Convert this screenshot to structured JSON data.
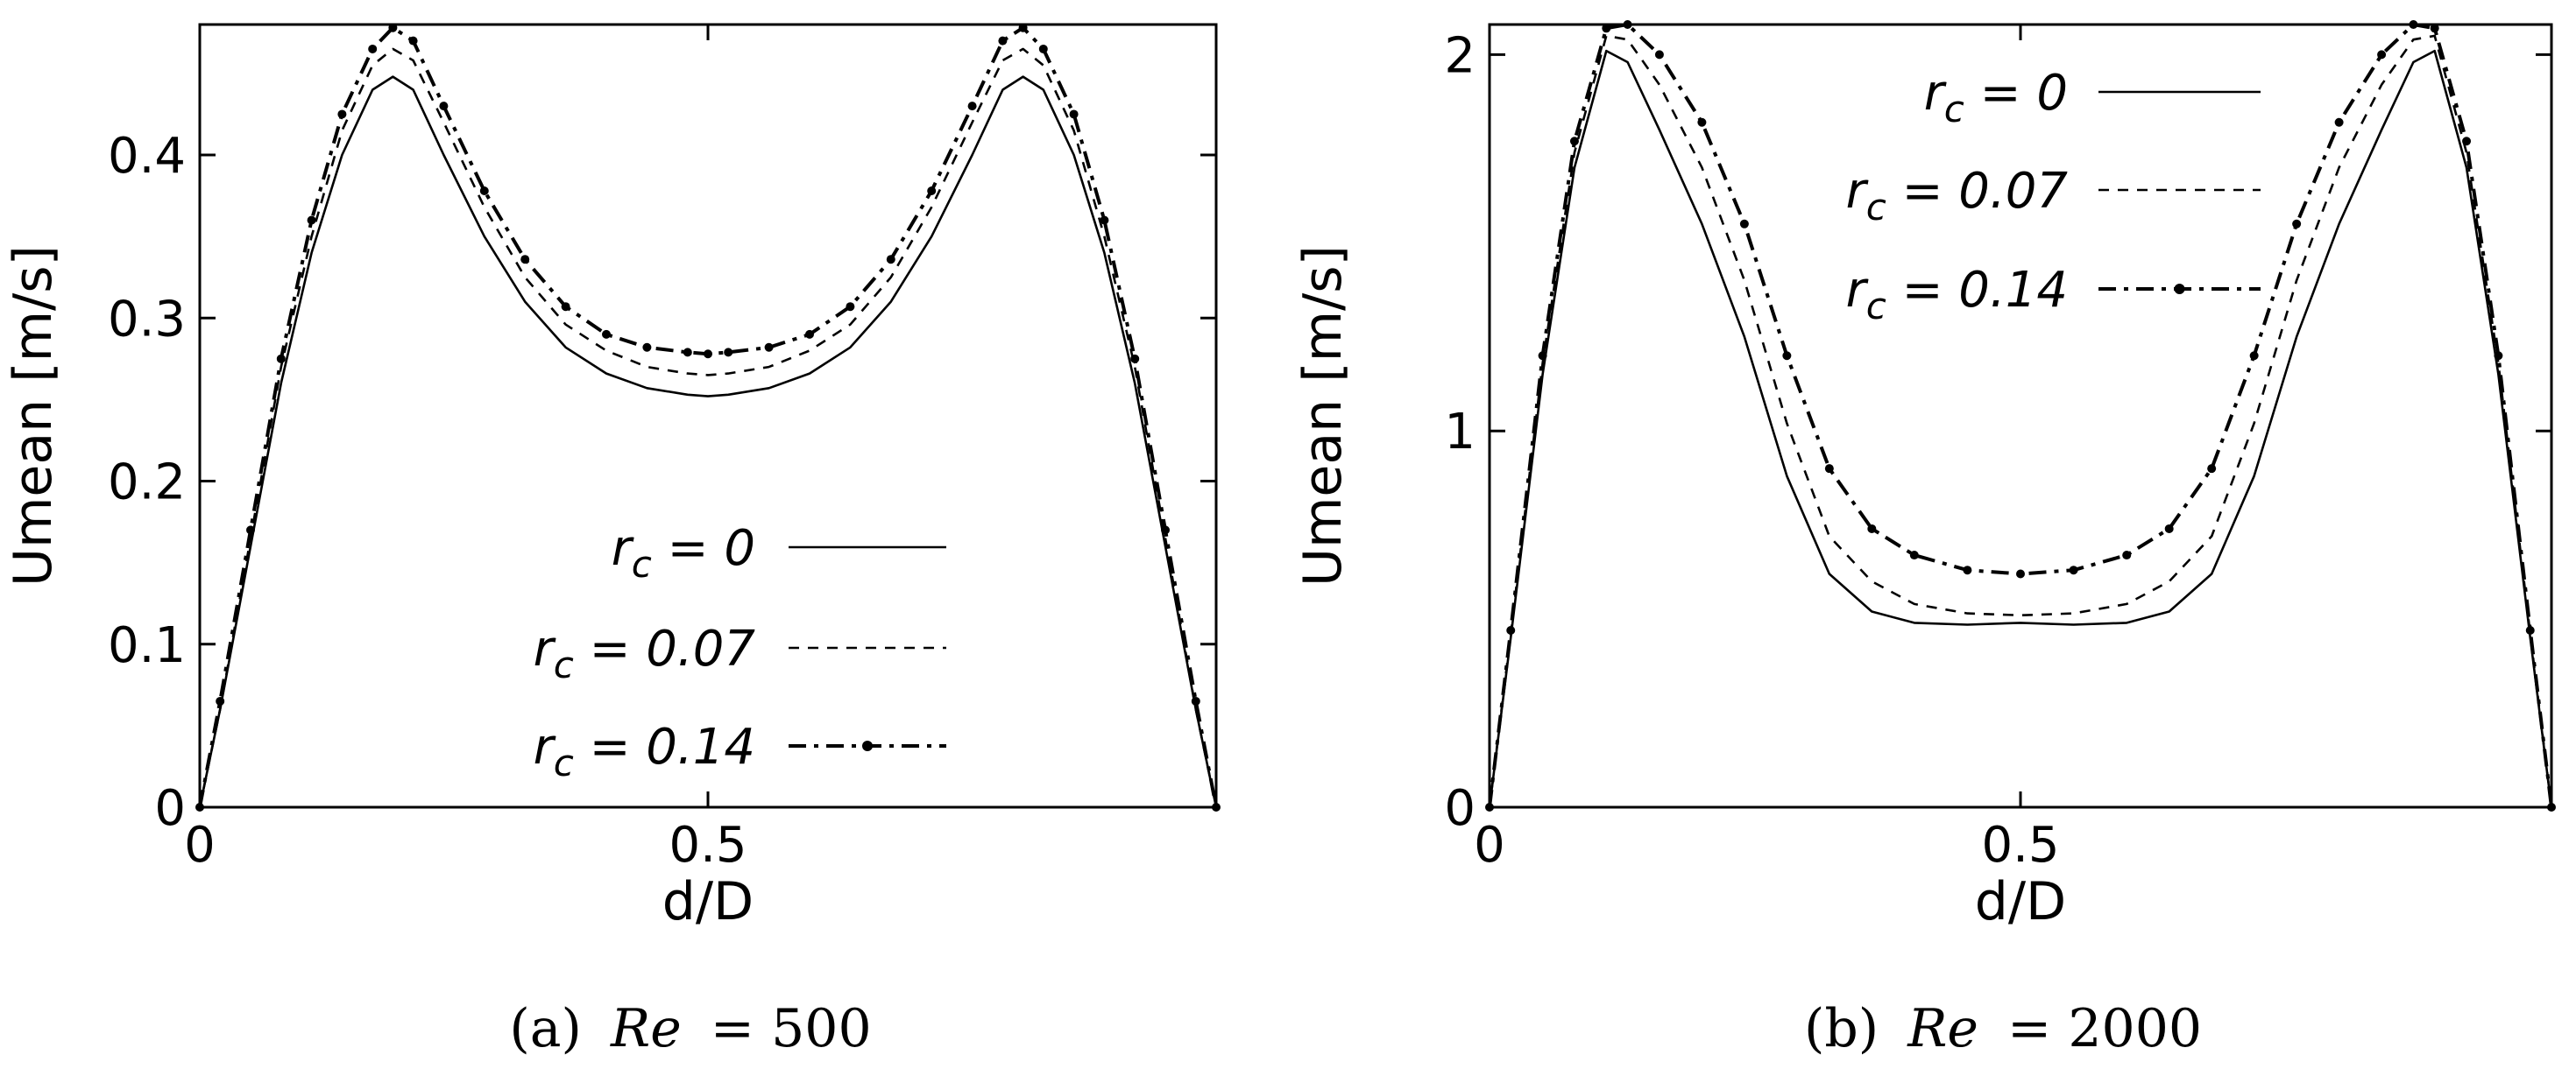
{
  "chart_data": [
    {
      "type": "line",
      "panel": "a",
      "caption_tag": "(a)",
      "caption_var": "Re",
      "caption_value": "= 500",
      "xlabel": "d/D",
      "ylabel": "Umean [m/s]",
      "xlim": [
        0,
        1
      ],
      "ylim": [
        0,
        0.48
      ],
      "xticks": [
        {
          "value": 0,
          "label": "0"
        },
        {
          "value": 0.5,
          "label": "0.5"
        }
      ],
      "yticks": [
        {
          "value": 0,
          "label": "0"
        },
        {
          "value": 0.1,
          "label": "0.1"
        },
        {
          "value": 0.2,
          "label": "0.2"
        },
        {
          "value": 0.3,
          "label": "0.3"
        },
        {
          "value": 0.4,
          "label": "0.4"
        }
      ],
      "legend_position": "bottom-right",
      "series": [
        {
          "name": "r",
          "sub": "c",
          "suffix": " = 0",
          "style": "solid",
          "x": [
            0,
            0.02,
            0.05,
            0.08,
            0.11,
            0.14,
            0.17,
            0.19,
            0.21,
            0.24,
            0.28,
            0.32,
            0.36,
            0.4,
            0.44,
            0.48,
            0.5,
            0.52,
            0.56,
            0.6,
            0.64,
            0.68,
            0.72,
            0.76,
            0.79,
            0.81,
            0.83,
            0.86,
            0.89,
            0.92,
            0.95,
            0.98,
            1.0
          ],
          "y": [
            0,
            0.06,
            0.16,
            0.26,
            0.34,
            0.4,
            0.44,
            0.448,
            0.44,
            0.4,
            0.35,
            0.31,
            0.282,
            0.266,
            0.257,
            0.253,
            0.252,
            0.253,
            0.257,
            0.266,
            0.282,
            0.31,
            0.35,
            0.4,
            0.44,
            0.448,
            0.44,
            0.4,
            0.34,
            0.26,
            0.16,
            0.06,
            0
          ]
        },
        {
          "name": "r",
          "sub": "c",
          "suffix": " = 0.07",
          "style": "dashed",
          "x": [
            0,
            0.02,
            0.05,
            0.08,
            0.11,
            0.14,
            0.17,
            0.19,
            0.21,
            0.24,
            0.28,
            0.32,
            0.36,
            0.4,
            0.44,
            0.48,
            0.5,
            0.52,
            0.56,
            0.6,
            0.64,
            0.68,
            0.72,
            0.76,
            0.79,
            0.81,
            0.83,
            0.86,
            0.89,
            0.92,
            0.95,
            0.98,
            1.0
          ],
          "y": [
            0,
            0.06,
            0.165,
            0.27,
            0.35,
            0.415,
            0.455,
            0.465,
            0.458,
            0.42,
            0.368,
            0.325,
            0.296,
            0.28,
            0.27,
            0.266,
            0.265,
            0.266,
            0.27,
            0.28,
            0.296,
            0.325,
            0.368,
            0.42,
            0.458,
            0.465,
            0.455,
            0.415,
            0.35,
            0.27,
            0.165,
            0.06,
            0
          ]
        },
        {
          "name": "r",
          "sub": "c",
          "suffix": " = 0.14",
          "style": "dashdot-marker",
          "x": [
            0,
            0.02,
            0.05,
            0.08,
            0.11,
            0.14,
            0.17,
            0.19,
            0.21,
            0.24,
            0.28,
            0.32,
            0.36,
            0.4,
            0.44,
            0.48,
            0.5,
            0.52,
            0.56,
            0.6,
            0.64,
            0.68,
            0.72,
            0.76,
            0.79,
            0.81,
            0.83,
            0.86,
            0.89,
            0.92,
            0.95,
            0.98,
            1.0
          ],
          "y": [
            0,
            0.065,
            0.17,
            0.275,
            0.36,
            0.425,
            0.465,
            0.478,
            0.47,
            0.43,
            0.378,
            0.336,
            0.307,
            0.29,
            0.282,
            0.279,
            0.278,
            0.279,
            0.282,
            0.29,
            0.307,
            0.336,
            0.378,
            0.43,
            0.47,
            0.478,
            0.465,
            0.425,
            0.36,
            0.275,
            0.17,
            0.065,
            0
          ]
        }
      ]
    },
    {
      "type": "line",
      "panel": "b",
      "caption_tag": "(b)",
      "caption_var": "Re",
      "caption_value": "= 2000",
      "xlabel": "d/D",
      "ylabel": "Umean [m/s]",
      "xlim": [
        0,
        1
      ],
      "ylim": [
        0,
        2.08
      ],
      "xticks": [
        {
          "value": 0,
          "label": "0"
        },
        {
          "value": 0.5,
          "label": "0.5"
        }
      ],
      "yticks": [
        {
          "value": 0,
          "label": "0"
        },
        {
          "value": 1,
          "label": "1"
        },
        {
          "value": 2,
          "label": "2"
        }
      ],
      "legend_position": "top-right",
      "series": [
        {
          "name": "r",
          "sub": "c",
          "suffix": " = 0",
          "style": "solid",
          "x": [
            0,
            0.02,
            0.05,
            0.08,
            0.11,
            0.13,
            0.16,
            0.2,
            0.24,
            0.28,
            0.32,
            0.36,
            0.4,
            0.45,
            0.5,
            0.55,
            0.6,
            0.64,
            0.68,
            0.72,
            0.76,
            0.8,
            0.84,
            0.87,
            0.89,
            0.92,
            0.95,
            0.98,
            1.0
          ],
          "y": [
            0,
            0.45,
            1.15,
            1.7,
            2.01,
            1.98,
            1.8,
            1.55,
            1.25,
            0.88,
            0.62,
            0.52,
            0.49,
            0.485,
            0.49,
            0.485,
            0.49,
            0.52,
            0.62,
            0.88,
            1.25,
            1.55,
            1.8,
            1.98,
            2.01,
            1.7,
            1.15,
            0.45,
            0
          ]
        },
        {
          "name": "r",
          "sub": "c",
          "suffix": " = 0.07",
          "style": "dashed",
          "x": [
            0,
            0.02,
            0.05,
            0.08,
            0.11,
            0.13,
            0.16,
            0.2,
            0.24,
            0.28,
            0.32,
            0.36,
            0.4,
            0.45,
            0.5,
            0.55,
            0.6,
            0.64,
            0.68,
            0.72,
            0.76,
            0.8,
            0.84,
            0.87,
            0.89,
            0.92,
            0.95,
            0.98,
            1.0
          ],
          "y": [
            0,
            0.46,
            1.18,
            1.74,
            2.05,
            2.04,
            1.92,
            1.7,
            1.4,
            1.02,
            0.72,
            0.6,
            0.54,
            0.515,
            0.51,
            0.515,
            0.54,
            0.6,
            0.72,
            1.02,
            1.4,
            1.7,
            1.92,
            2.04,
            2.05,
            1.74,
            1.18,
            0.46,
            0
          ]
        },
        {
          "name": "r",
          "sub": "c",
          "suffix": " = 0.14",
          "style": "dashdot-marker",
          "x": [
            0,
            0.02,
            0.05,
            0.08,
            0.11,
            0.13,
            0.16,
            0.2,
            0.24,
            0.28,
            0.32,
            0.36,
            0.4,
            0.45,
            0.5,
            0.55,
            0.6,
            0.64,
            0.68,
            0.72,
            0.76,
            0.8,
            0.84,
            0.87,
            0.89,
            0.92,
            0.95,
            0.98,
            1.0
          ],
          "y": [
            0,
            0.47,
            1.2,
            1.77,
            2.07,
            2.08,
            2.0,
            1.82,
            1.55,
            1.2,
            0.9,
            0.74,
            0.67,
            0.63,
            0.62,
            0.63,
            0.67,
            0.74,
            0.9,
            1.2,
            1.55,
            1.82,
            2.0,
            2.08,
            2.07,
            1.77,
            1.2,
            0.47,
            0
          ]
        }
      ]
    }
  ]
}
